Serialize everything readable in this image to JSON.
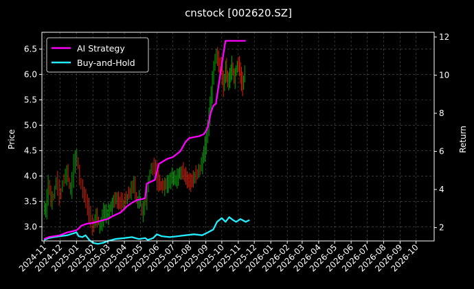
{
  "chart_data": {
    "type": "line",
    "title": "cnstock [002620.SZ]",
    "ylabel": "Price",
    "y2label": "Return",
    "grid": true,
    "legend_position": "top-left",
    "background": "#000000",
    "x_ticks": [
      "2024-11",
      "2024-12",
      "2025-01",
      "2025-02",
      "2025-03",
      "2025-04",
      "2025-05",
      "2025-06",
      "2025-07",
      "2025-08",
      "2025-09",
      "2025-10",
      "2025-11",
      "2025-12",
      "2026-01",
      "2026-02",
      "2026-03",
      "2026-04",
      "2026-05",
      "2026-06",
      "2026-07",
      "2026-08",
      "2026-09",
      "2026-10"
    ],
    "xlim": [
      "2024-10-28",
      "2026-11-04"
    ],
    "y_ticks": [
      3.0,
      3.5,
      4.0,
      4.5,
      5.0,
      5.5,
      6.0,
      6.5
    ],
    "ylim": [
      2.72,
      6.83
    ],
    "y2_ticks": [
      2,
      4,
      6,
      8,
      10,
      12
    ],
    "y2lim": [
      1.3,
      12.25
    ],
    "series": [
      {
        "name": "AI Strategy",
        "axis": "right",
        "color": "#ff00ff",
        "points": [
          [
            "2024-11-01",
            1.4
          ],
          [
            "2024-11-10",
            1.5
          ],
          [
            "2024-11-20",
            1.55
          ],
          [
            "2024-12-01",
            1.6
          ],
          [
            "2024-12-15",
            1.75
          ],
          [
            "2024-12-31",
            1.85
          ],
          [
            "2025-01-05",
            1.95
          ],
          [
            "2025-01-10",
            2.1
          ],
          [
            "2025-01-20",
            2.2
          ],
          [
            "2025-02-01",
            2.25
          ],
          [
            "2025-02-15",
            2.35
          ],
          [
            "2025-02-28",
            2.45
          ],
          [
            "2025-03-10",
            2.6
          ],
          [
            "2025-03-25",
            2.8
          ],
          [
            "2025-04-05",
            3.1
          ],
          [
            "2025-04-15",
            3.3
          ],
          [
            "2025-04-25",
            3.45
          ],
          [
            "2025-05-05",
            3.5
          ],
          [
            "2025-05-10",
            3.55
          ],
          [
            "2025-05-13",
            4.3
          ],
          [
            "2025-05-20",
            4.4
          ],
          [
            "2025-05-28",
            4.5
          ],
          [
            "2025-06-05",
            5.35
          ],
          [
            "2025-06-20",
            5.6
          ],
          [
            "2025-07-01",
            5.7
          ],
          [
            "2025-07-15",
            6.0
          ],
          [
            "2025-07-25",
            6.5
          ],
          [
            "2025-08-01",
            6.7
          ],
          [
            "2025-08-10",
            6.75
          ],
          [
            "2025-08-20",
            6.8
          ],
          [
            "2025-08-28",
            6.9
          ],
          [
            "2025-09-01",
            7.05
          ],
          [
            "2025-09-05",
            7.3
          ],
          [
            "2025-09-10",
            8.0
          ],
          [
            "2025-09-15",
            8.4
          ],
          [
            "2025-09-20",
            8.5
          ],
          [
            "2025-09-28",
            10.0
          ],
          [
            "2025-10-05",
            11.3
          ],
          [
            "2025-10-08",
            11.8
          ],
          [
            "2025-11-15",
            11.8
          ]
        ]
      },
      {
        "name": "Buy-and-Hold",
        "axis": "right",
        "color": "#22eeff",
        "points": [
          [
            "2024-11-01",
            1.35
          ],
          [
            "2024-11-10",
            1.45
          ],
          [
            "2024-11-20",
            1.5
          ],
          [
            "2024-12-01",
            1.55
          ],
          [
            "2024-12-15",
            1.6
          ],
          [
            "2025-01-01",
            1.75
          ],
          [
            "2025-01-05",
            1.55
          ],
          [
            "2025-01-12",
            1.5
          ],
          [
            "2025-01-18",
            1.6
          ],
          [
            "2025-01-25",
            1.35
          ],
          [
            "2025-02-01",
            1.2
          ],
          [
            "2025-02-10",
            1.15
          ],
          [
            "2025-02-20",
            1.2
          ],
          [
            "2025-03-01",
            1.3
          ],
          [
            "2025-03-15",
            1.4
          ],
          [
            "2025-04-01",
            1.45
          ],
          [
            "2025-04-15",
            1.5
          ],
          [
            "2025-04-28",
            1.4
          ],
          [
            "2025-05-10",
            1.45
          ],
          [
            "2025-05-15",
            1.35
          ],
          [
            "2025-05-25",
            1.45
          ],
          [
            "2025-06-01",
            1.65
          ],
          [
            "2025-06-10",
            1.55
          ],
          [
            "2025-06-25",
            1.5
          ],
          [
            "2025-07-10",
            1.55
          ],
          [
            "2025-07-25",
            1.6
          ],
          [
            "2025-08-10",
            1.65
          ],
          [
            "2025-08-25",
            1.6
          ],
          [
            "2025-09-05",
            1.75
          ],
          [
            "2025-09-15",
            1.9
          ],
          [
            "2025-09-22",
            2.3
          ],
          [
            "2025-10-01",
            2.5
          ],
          [
            "2025-10-08",
            2.3
          ],
          [
            "2025-10-15",
            2.55
          ],
          [
            "2025-10-22",
            2.4
          ],
          [
            "2025-10-28",
            2.3
          ],
          [
            "2025-11-05",
            2.45
          ],
          [
            "2025-11-15",
            2.3
          ],
          [
            "2025-11-22",
            2.4
          ]
        ]
      },
      {
        "name": "Price",
        "axis": "left",
        "style": "candles",
        "up_color": "#00aa00",
        "down_color": "#dd2200",
        "points": [
          [
            "2024-11-01",
            3.4
          ],
          [
            "2024-11-05",
            3.3
          ],
          [
            "2024-11-10",
            3.9
          ],
          [
            "2024-11-15",
            3.5
          ],
          [
            "2024-11-20",
            3.6
          ],
          [
            "2024-11-25",
            3.9
          ],
          [
            "2024-12-01",
            3.6
          ],
          [
            "2024-12-07",
            3.85
          ],
          [
            "2024-12-15",
            4.1
          ],
          [
            "2024-12-22",
            3.7
          ],
          [
            "2024-12-28",
            4.25
          ],
          [
            "2025-01-03",
            4.4
          ],
          [
            "2025-01-08",
            3.9
          ],
          [
            "2025-01-14",
            3.7
          ],
          [
            "2025-01-20",
            3.5
          ],
          [
            "2025-01-26",
            3.2
          ],
          [
            "2025-02-01",
            3.0
          ],
          [
            "2025-02-08",
            3.2
          ],
          [
            "2025-02-15",
            3.0
          ],
          [
            "2025-02-22",
            3.3
          ],
          [
            "2025-03-01",
            3.25
          ],
          [
            "2025-03-08",
            3.4
          ],
          [
            "2025-03-15",
            3.55
          ],
          [
            "2025-03-22",
            3.5
          ],
          [
            "2025-04-01",
            3.45
          ],
          [
            "2025-04-08",
            3.6
          ],
          [
            "2025-04-15",
            3.75
          ],
          [
            "2025-04-20",
            3.85
          ],
          [
            "2025-04-25",
            3.5
          ],
          [
            "2025-04-30",
            3.55
          ],
          [
            "2025-05-05",
            3.3
          ],
          [
            "2025-05-12",
            3.5
          ],
          [
            "2025-05-20",
            4.1
          ],
          [
            "2025-05-28",
            4.2
          ],
          [
            "2025-06-03",
            3.9
          ],
          [
            "2025-06-10",
            3.8
          ],
          [
            "2025-06-17",
            3.8
          ],
          [
            "2025-06-24",
            3.9
          ],
          [
            "2025-07-01",
            4.0
          ],
          [
            "2025-07-08",
            3.9
          ],
          [
            "2025-07-15",
            4.1
          ],
          [
            "2025-07-22",
            4.05
          ],
          [
            "2025-07-29",
            3.9
          ],
          [
            "2025-08-05",
            3.85
          ],
          [
            "2025-08-12",
            4.0
          ],
          [
            "2025-08-20",
            4.1
          ],
          [
            "2025-08-27",
            4.3
          ],
          [
            "2025-09-03",
            4.8
          ],
          [
            "2025-09-08",
            5.2
          ],
          [
            "2025-09-12",
            5.6
          ],
          [
            "2025-09-17",
            6.2
          ],
          [
            "2025-09-22",
            6.4
          ],
          [
            "2025-09-26",
            6.2
          ],
          [
            "2025-10-01",
            6.1
          ],
          [
            "2025-10-05",
            5.7
          ],
          [
            "2025-10-09",
            6.2
          ],
          [
            "2025-10-13",
            5.8
          ],
          [
            "2025-10-17",
            6.0
          ],
          [
            "2025-10-21",
            6.2
          ],
          [
            "2025-10-25",
            5.9
          ],
          [
            "2025-10-29",
            6.1
          ],
          [
            "2025-11-02",
            6.2
          ],
          [
            "2025-11-06",
            6.0
          ],
          [
            "2025-11-10",
            5.7
          ],
          [
            "2025-11-14",
            6.1
          ]
        ]
      }
    ]
  }
}
